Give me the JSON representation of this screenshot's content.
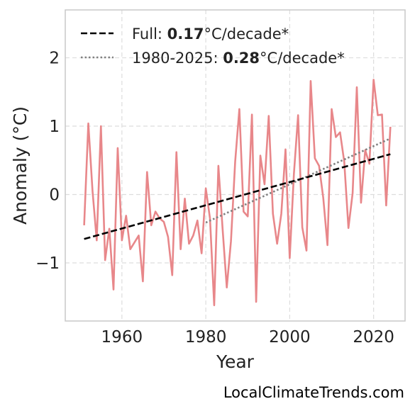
{
  "source_credit": "LocalClimateTrends.com",
  "colors": {
    "anomaly_line": "#e8878a",
    "trend_full": "#000000",
    "trend_recent": "#808080",
    "grid": "#dddddd",
    "frame": "#c8c8c8"
  },
  "chart_data": {
    "type": "line",
    "xlabel": "Year",
    "ylabel": "Anomaly (°C)",
    "xlim": [
      1946.5,
      2027.5
    ],
    "ylim": [
      -1.85,
      2.7
    ],
    "x_ticks": [
      1960,
      1980,
      2000,
      2020
    ],
    "y_ticks": [
      -1,
      0,
      1,
      2
    ],
    "y_tick_labels": [
      "−1",
      "0",
      "1",
      "2"
    ],
    "grid": true,
    "legend_position": "top-left",
    "legend": [
      {
        "prefix": "Full: ",
        "value": "0.17",
        "suffix": "°C/decade*",
        "style": "dashed"
      },
      {
        "prefix": "1980-2025: ",
        "value": "0.28",
        "suffix": "°C/decade*",
        "style": "dotted"
      }
    ],
    "series": [
      {
        "x": [
          1951,
          1952,
          1953,
          1954,
          1955,
          1956,
          1957,
          1958,
          1959,
          1960,
          1961,
          1962,
          1963,
          1964,
          1965,
          1966,
          1967,
          1968,
          1969,
          1970,
          1971,
          1972,
          1973,
          1974,
          1975,
          1976,
          1977,
          1978,
          1979,
          1980,
          1981,
          1982,
          1983,
          1984,
          1985,
          1986,
          1987,
          1988,
          1989,
          1990,
          1991,
          1992,
          1993,
          1994,
          1995,
          1996,
          1997,
          1998,
          1999,
          2000,
          2001,
          2002,
          2003,
          2004,
          2005,
          2006,
          2007,
          2008,
          2009,
          2010,
          2011,
          2012,
          2013,
          2014,
          2015,
          2016,
          2017,
          2018,
          2019,
          2020,
          2021,
          2022,
          2023,
          2024
        ],
        "values": [
          -0.45,
          1.04,
          0.05,
          -0.67,
          1.0,
          -0.96,
          -0.5,
          -1.39,
          0.68,
          -0.67,
          -0.31,
          -0.8,
          -0.7,
          -0.6,
          -1.27,
          0.33,
          -0.45,
          -0.25,
          -0.35,
          -0.4,
          -0.62,
          -1.18,
          0.62,
          -0.8,
          -0.06,
          -0.72,
          -0.6,
          -0.38,
          -0.86,
          0.09,
          -0.35,
          -1.62,
          0.42,
          -0.5,
          -1.36,
          -0.68,
          0.48,
          1.25,
          -0.25,
          -0.32,
          1.17,
          -1.57,
          0.57,
          0.15,
          1.15,
          -0.28,
          -0.72,
          -0.28,
          0.66,
          -0.93,
          0.3,
          1.16,
          -0.48,
          -0.82,
          1.66,
          0.53,
          0.42,
          -0.05,
          -0.74,
          1.25,
          0.84,
          0.91,
          0.48,
          -0.49,
          0.02,
          1.57,
          -0.12,
          0.65,
          0.45,
          1.68,
          1.16,
          1.17,
          -0.16,
          0.99
        ]
      }
    ],
    "trend_full": {
      "x": [
        1951,
        2024
      ],
      "values": [
        -0.65,
        0.59
      ]
    },
    "trend_recent": {
      "x": [
        1980,
        2024
      ],
      "values": [
        -0.41,
        0.82
      ]
    }
  }
}
